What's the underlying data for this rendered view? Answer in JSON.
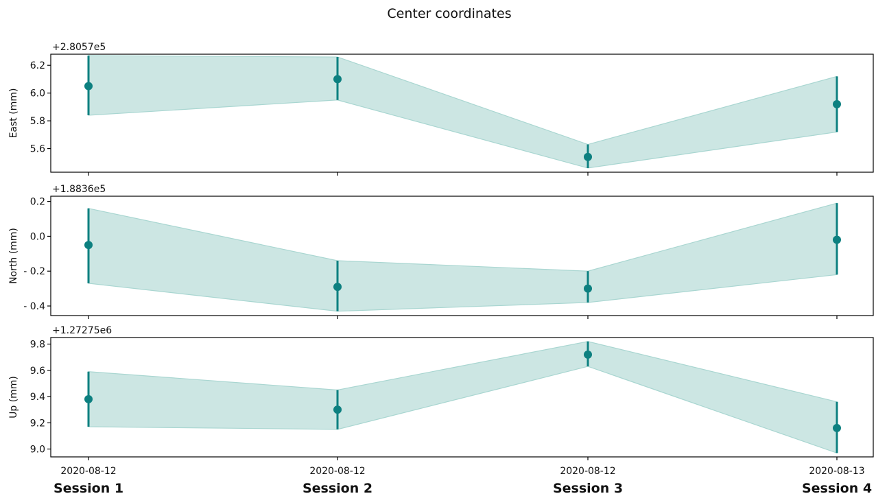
{
  "chart_data": {
    "type": "line",
    "title": "Center coordinates",
    "x_tick_labels": [
      "2020-08-12",
      "2020-08-12",
      "2020-08-12",
      "2020-08-13"
    ],
    "session_labels": [
      "Session 1",
      "Session 2",
      "Session 3",
      "Session 4"
    ],
    "colors": {
      "marker": "#0d8080",
      "band": "#cce6e3",
      "band_edge": "#a9d6d1",
      "axis": "#000000"
    },
    "panels": [
      {
        "ylabel": "East (mm)",
        "offset": "+2.8057e5",
        "ylim": [
          5.43,
          6.28
        ],
        "yticks": [
          5.6,
          5.8,
          6.0,
          6.2
        ],
        "ytick_labels": [
          "5.6",
          "5.8",
          "6.0",
          "6.2"
        ],
        "values": [
          6.05,
          6.1,
          5.54,
          5.92
        ],
        "lower": [
          5.84,
          5.95,
          5.46,
          5.72
        ],
        "upper": [
          6.27,
          6.26,
          5.63,
          6.12
        ]
      },
      {
        "ylabel": "North (mm)",
        "offset": "+1.8836e5",
        "ylim": [
          -0.455,
          0.23
        ],
        "yticks": [
          -0.4,
          -0.2,
          0.0,
          0.2
        ],
        "ytick_labels": [
          "- 0.4",
          "- 0.2",
          "0.0",
          "0.2"
        ],
        "values": [
          -0.05,
          -0.29,
          -0.3,
          -0.02
        ],
        "lower": [
          -0.27,
          -0.43,
          -0.38,
          -0.22
        ],
        "upper": [
          0.16,
          -0.14,
          -0.2,
          0.19
        ]
      },
      {
        "ylabel": "Up (mm)",
        "offset": "+1.27275e6",
        "ylim": [
          8.94,
          9.85
        ],
        "yticks": [
          9.0,
          9.2,
          9.4,
          9.6,
          9.8
        ],
        "ytick_labels": [
          "9.0",
          "9.2",
          "9.4",
          "9.6",
          "9.8"
        ],
        "values": [
          9.38,
          9.3,
          9.72,
          9.16
        ],
        "lower": [
          9.17,
          9.15,
          9.63,
          8.97
        ],
        "upper": [
          9.59,
          9.45,
          9.82,
          9.36
        ]
      }
    ]
  }
}
